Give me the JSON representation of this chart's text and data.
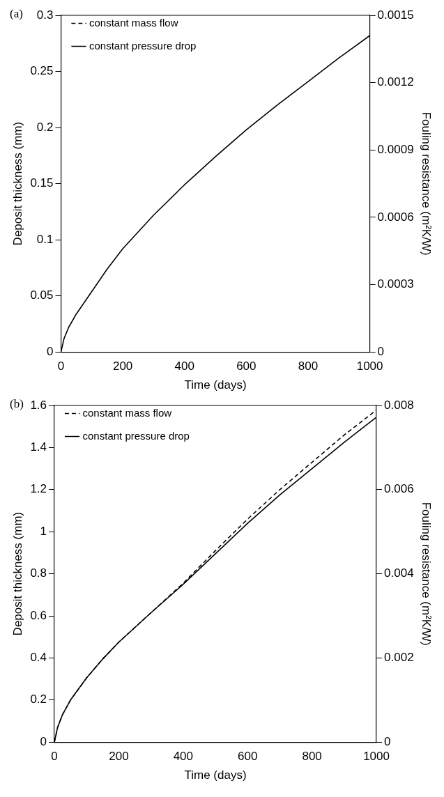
{
  "chart_data": [
    {
      "type": "line",
      "annotations": [
        "(a)"
      ],
      "xlabel": "Time (days)",
      "ylabel": "Deposit thickness (mm)",
      "y2label": "Fouling resistance (m²K/W)",
      "xlim": [
        0,
        1000
      ],
      "xticks": [
        0,
        200,
        400,
        600,
        800,
        1000
      ],
      "ylim": [
        0,
        0.3
      ],
      "yticks": [
        0,
        0.05,
        0.1,
        0.15,
        0.2,
        0.25,
        0.3
      ],
      "y2lim": [
        0,
        0.0015
      ],
      "y2ticks": [
        0,
        0.0003,
        0.0006,
        0.0009,
        0.0012,
        0.0015
      ],
      "grid": false,
      "legend": "top left",
      "marker": "none",
      "series": [
        {
          "name": "constant mass flow",
          "color": "#000000",
          "line_style": "dashed",
          "values": [
            null,
            null,
            null,
            null,
            null,
            null,
            null,
            null,
            null,
            null,
            null,
            null,
            null,
            null,
            null
          ]
        },
        {
          "name": "constant pressure drop",
          "color": "#000000",
          "line_style": "solid",
          "x": [
            0,
            10,
            25,
            50,
            100,
            150,
            200,
            300,
            400,
            500,
            600,
            700,
            800,
            900,
            1000
          ],
          "values": [
            0,
            0.012,
            0.022,
            0.034,
            0.054,
            0.074,
            0.092,
            0.122,
            0.149,
            0.174,
            0.198,
            0.22,
            0.241,
            0.262,
            0.282
          ]
        }
      ]
    },
    {
      "type": "line",
      "annotations": [
        "(b)"
      ],
      "xlabel": "Time (days)",
      "ylabel": "Deposit thickness (mm)",
      "y2label": "Fouling resistance (m²K/W)",
      "xlim": [
        0,
        1000
      ],
      "xticks": [
        0,
        200,
        400,
        600,
        800,
        1000
      ],
      "ylim": [
        0,
        1.6
      ],
      "yticks": [
        0,
        0.2,
        0.4,
        0.6,
        0.8,
        1,
        1.2,
        1.4,
        1.6
      ],
      "y2lim": [
        0,
        0.008
      ],
      "y2ticks": [
        0,
        0.002,
        0.004,
        0.006,
        0.008
      ],
      "grid": false,
      "legend": "top left",
      "marker": "none",
      "series": [
        {
          "name": "constant mass flow",
          "color": "#000000",
          "line_style": "dashed",
          "x": [
            0,
            10,
            25,
            50,
            100,
            150,
            200,
            300,
            400,
            500,
            600,
            700,
            800,
            900,
            1000
          ],
          "values": [
            0,
            0.07,
            0.13,
            0.2,
            0.305,
            0.395,
            0.475,
            0.615,
            0.755,
            0.91,
            1.06,
            1.2,
            1.33,
            1.46,
            1.578
          ]
        },
        {
          "name": "constant pressure drop",
          "color": "#000000",
          "line_style": "solid",
          "x": [
            0,
            10,
            25,
            50,
            100,
            150,
            200,
            300,
            400,
            500,
            600,
            700,
            800,
            900,
            1000
          ],
          "values": [
            0,
            0.07,
            0.13,
            0.2,
            0.305,
            0.395,
            0.475,
            0.615,
            0.75,
            0.895,
            1.04,
            1.175,
            1.3,
            1.425,
            1.544
          ]
        }
      ]
    }
  ]
}
